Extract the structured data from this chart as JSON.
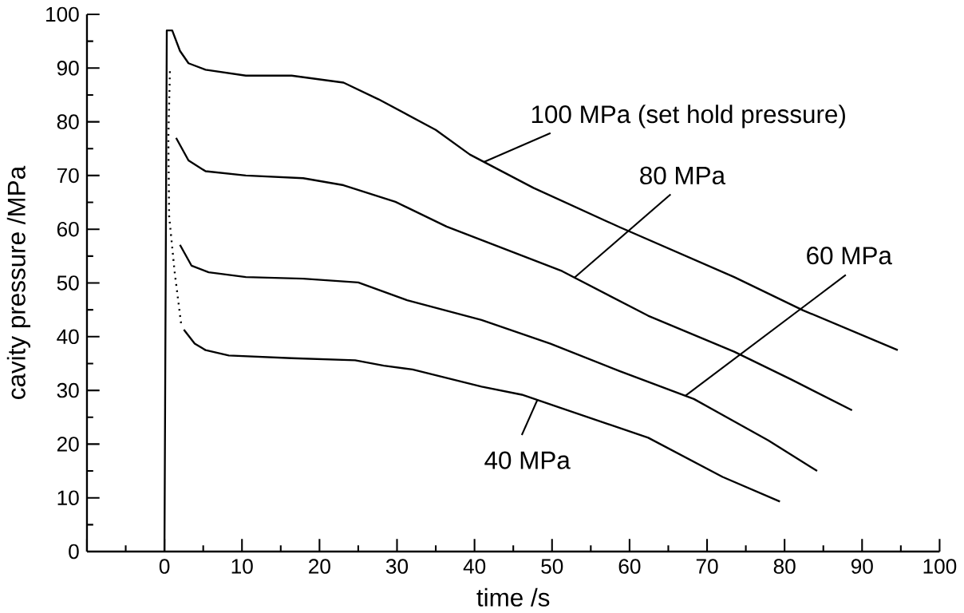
{
  "chart_data": {
    "type": "line",
    "xlabel": "time /s",
    "ylabel": "cavity pressure /MPa",
    "xlim": [
      -10,
      100
    ],
    "ylim": [
      0,
      100
    ],
    "xticks": [
      {
        "value": -10,
        "label": null
      },
      0,
      10,
      20,
      30,
      40,
      50,
      60,
      70,
      80,
      90,
      100
    ],
    "yticks": [
      0,
      10,
      20,
      30,
      40,
      50,
      60,
      70,
      80,
      90,
      100
    ],
    "grid": false,
    "marker": "none",
    "line_style": "solid",
    "color": "#000000",
    "series": [
      {
        "x": [
          0,
          0.3,
          1,
          2,
          3.1,
          5.3,
          10.5,
          16.4,
          23.1,
          27.6,
          35,
          39.4,
          47.6,
          58.7,
          73.5,
          82.4,
          94.6
        ],
        "values": [
          0,
          97,
          97,
          93.2,
          90.9,
          89.7,
          88.6,
          88.6,
          87.3,
          84.2,
          78.5,
          73.9,
          67.7,
          60.4,
          51.1,
          44.9,
          37.5
        ]
      },
      {
        "x": [
          1.5,
          3.1,
          5.3,
          10.5,
          17.9,
          23.1,
          29.8,
          36.4,
          51.3,
          62.4,
          73.5,
          80.9,
          88.7
        ],
        "values": [
          77,
          72.8,
          70.8,
          70,
          69.5,
          68.2,
          65.1,
          60.5,
          52.2,
          43.9,
          37.2,
          32,
          26.3
        ]
      },
      {
        "x": [
          2,
          3.5,
          5.7,
          10.5,
          17.9,
          25,
          31.3,
          40.9,
          49.8,
          58.7,
          68.3,
          77.9,
          84.2
        ],
        "values": [
          57.1,
          53.2,
          52,
          51.1,
          50.8,
          50.1,
          46.8,
          43.1,
          38.7,
          33.6,
          28.4,
          20.7,
          15
        ]
      },
      {
        "x": [
          2.5,
          3.9,
          5.3,
          8.3,
          16.4,
          24.6,
          28.3,
          32,
          40.9,
          46.1,
          62.4,
          72,
          79.4
        ],
        "values": [
          41.3,
          38.7,
          37.5,
          36.5,
          36,
          35.6,
          34.6,
          33.9,
          30.7,
          29.2,
          21.2,
          13.9,
          9.3
        ]
      },
      {
        "x": [
          0.7,
          0.5,
          0.6,
          1.3,
          2.2
        ],
        "values": [
          89.4,
          77,
          62.5,
          52.2,
          41.8
        ],
        "line_style": "dotted"
      }
    ],
    "annotations": [
      {
        "text": "100 MPa (set hold pressure)",
        "x": 41.2,
        "y": 72.5
      },
      {
        "text": "80 MPa",
        "x": 52.9,
        "y": 51
      },
      {
        "text": "60 MPa",
        "x": 67.2,
        "y": 29
      },
      {
        "text": "40 MPa",
        "x": 48.1,
        "y": 28.2
      }
    ]
  }
}
